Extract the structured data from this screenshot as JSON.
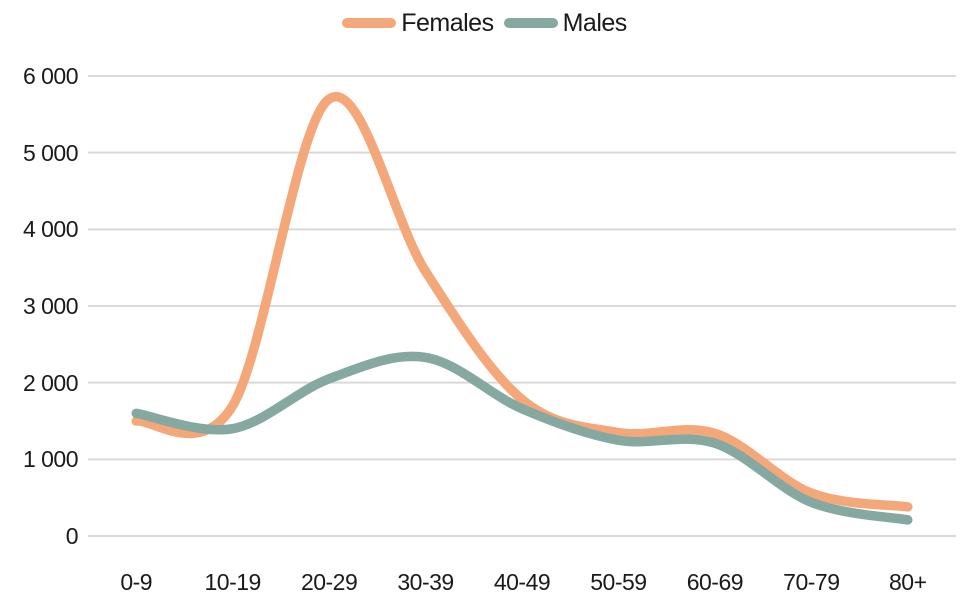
{
  "chart_data": {
    "type": "line",
    "title": "",
    "xlabel": "",
    "ylabel": "",
    "categories": [
      "0-9",
      "10-19",
      "20-29",
      "30-39",
      "40-49",
      "50-59",
      "60-69",
      "70-79",
      "80+"
    ],
    "series": [
      {
        "name": "Females",
        "color": "#F4A879",
        "values": [
          1500,
          1700,
          5700,
          3450,
          1780,
          1350,
          1340,
          560,
          380
        ]
      },
      {
        "name": "Males",
        "color": "#85A8A1",
        "values": [
          1600,
          1400,
          2050,
          2330,
          1660,
          1250,
          1210,
          440,
          210
        ]
      }
    ],
    "ylim": [
      0,
      6000
    ],
    "ytick_interval": 1000,
    "ytick_labels": [
      "0",
      "1 000",
      "2 000",
      "3 000",
      "4 000",
      "5 000",
      "6 000"
    ],
    "grid": "horizontal-only",
    "legend_position": "top-center",
    "line_style": "smooth-rounded-caps"
  },
  "colors": {
    "gridline": "#d9d9d9",
    "text": "#1a1a1a",
    "background": "#ffffff"
  }
}
